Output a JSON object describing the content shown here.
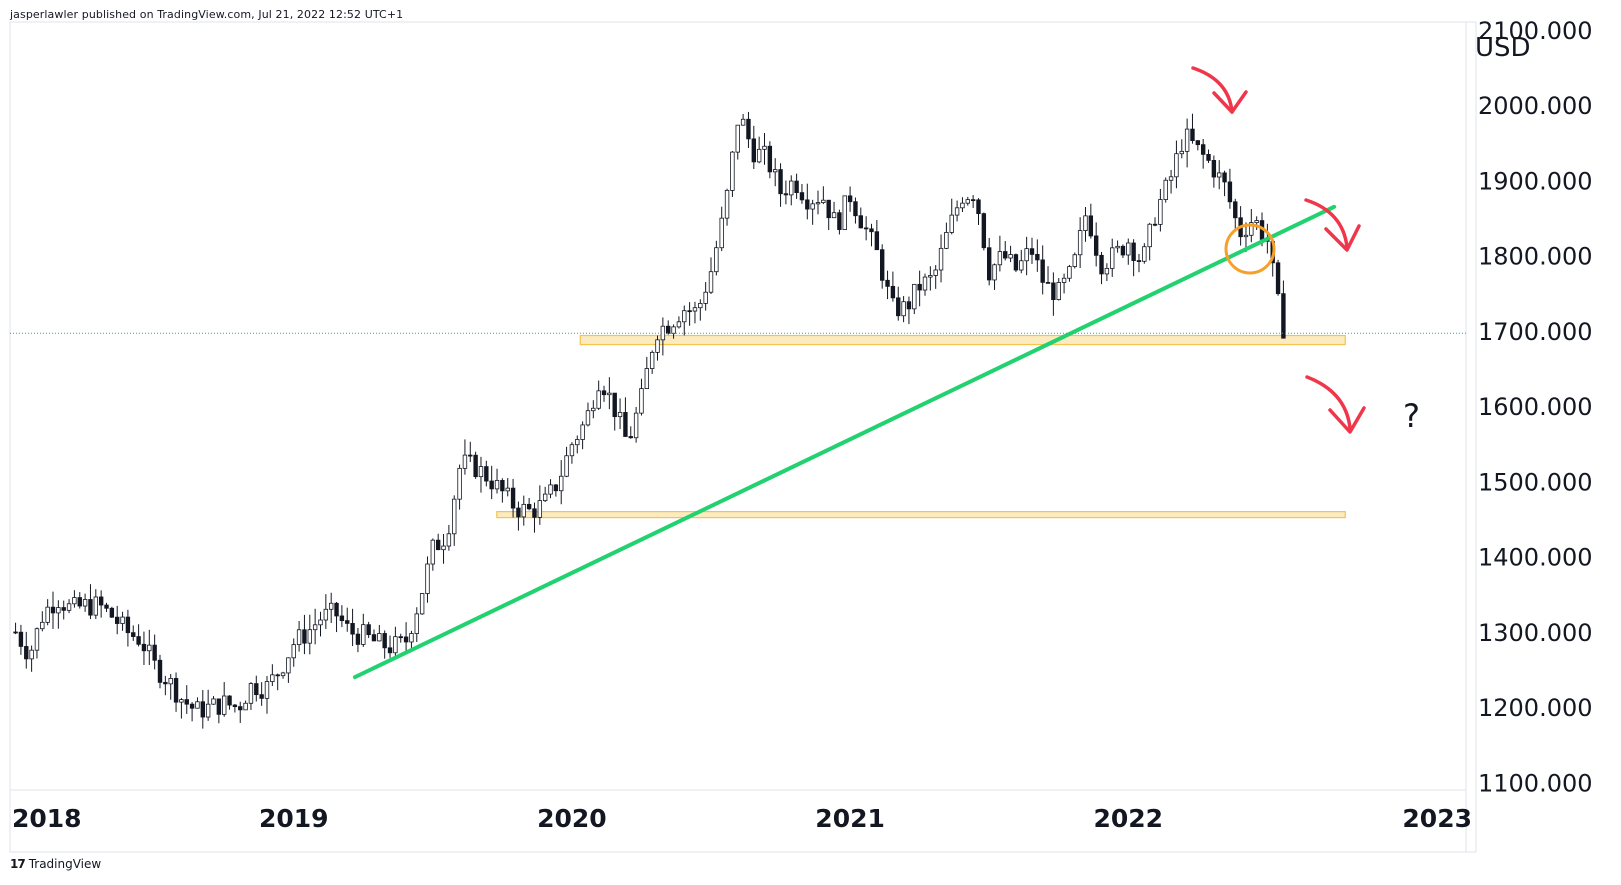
{
  "header": {
    "text": "jasperlawler published on TradingView.com, Jul 21, 2022 12:52 UTC+1"
  },
  "footer": {
    "logo": "17",
    "text": "TradingView"
  },
  "colors": {
    "trendline": "#22d16f",
    "zone": "#f5c44a",
    "arrow": "#f0364a",
    "circle": "#f5a02a",
    "candle": "#131722",
    "current": "#26a69a"
  },
  "chart_data": {
    "type": "candlestick",
    "currency": "USD",
    "ylim": [
      1090,
      2100
    ],
    "y_ticks": [
      "2100.000",
      "2000.000",
      "1900.000",
      "1800.000",
      "1700.000",
      "1600.000",
      "1500.000",
      "1400.000",
      "1300.000",
      "1200.000",
      "1100.000"
    ],
    "x_ticks": [
      "2018",
      "2019",
      "2020",
      "2021",
      "2022",
      "2023"
    ],
    "current_price": 1697,
    "support_zones": [
      {
        "from": 1682,
        "to": 1694,
        "start": 2020.03,
        "end": 2022.78
      },
      {
        "from": 1452,
        "to": 1460,
        "start": 2019.73,
        "end": 2022.78
      }
    ],
    "trendline": {
      "points": [
        [
          2019.22,
          1240
        ],
        [
          2022.74,
          1865
        ]
      ]
    },
    "annotation": "?",
    "closes": [
      [
        2018.0,
        1300
      ],
      [
        2018.05,
        1270
      ],
      [
        2018.1,
        1325
      ],
      [
        2018.15,
        1345
      ],
      [
        2018.2,
        1330
      ],
      [
        2018.25,
        1335
      ],
      [
        2018.3,
        1335
      ],
      [
        2018.35,
        1320
      ],
      [
        2018.4,
        1300
      ],
      [
        2018.45,
        1290
      ],
      [
        2018.5,
        1255
      ],
      [
        2018.55,
        1235
      ],
      [
        2018.6,
        1210
      ],
      [
        2018.65,
        1195
      ],
      [
        2018.7,
        1200
      ],
      [
        2018.75,
        1205
      ],
      [
        2018.8,
        1200
      ],
      [
        2018.85,
        1230
      ],
      [
        2018.9,
        1225
      ],
      [
        2018.95,
        1250
      ],
      [
        2019.0,
        1285
      ],
      [
        2019.05,
        1300
      ],
      [
        2019.1,
        1320
      ],
      [
        2019.15,
        1325
      ],
      [
        2019.2,
        1300
      ],
      [
        2019.25,
        1295
      ],
      [
        2019.3,
        1285
      ],
      [
        2019.35,
        1280
      ],
      [
        2019.4,
        1285
      ],
      [
        2019.45,
        1340
      ],
      [
        2019.5,
        1410
      ],
      [
        2019.55,
        1430
      ],
      [
        2019.6,
        1525
      ],
      [
        2019.65,
        1520
      ],
      [
        2019.7,
        1505
      ],
      [
        2019.75,
        1485
      ],
      [
        2019.8,
        1465
      ],
      [
        2019.85,
        1460
      ],
      [
        2019.9,
        1470
      ],
      [
        2019.95,
        1500
      ],
      [
        2020.0,
        1550
      ],
      [
        2020.05,
        1580
      ],
      [
        2020.1,
        1640
      ],
      [
        2020.15,
        1600
      ],
      [
        2020.2,
        1550
      ],
      [
        2020.25,
        1610
      ],
      [
        2020.3,
        1700
      ],
      [
        2020.35,
        1710
      ],
      [
        2020.4,
        1730
      ],
      [
        2020.45,
        1725
      ],
      [
        2020.5,
        1780
      ],
      [
        2020.55,
        1860
      ],
      [
        2020.6,
        1990
      ],
      [
        2020.65,
        1940
      ],
      [
        2020.7,
        1930
      ],
      [
        2020.75,
        1885
      ],
      [
        2020.8,
        1900
      ],
      [
        2020.85,
        1875
      ],
      [
        2020.9,
        1880
      ],
      [
        2020.95,
        1840
      ],
      [
        2021.0,
        1880
      ],
      [
        2021.05,
        1840
      ],
      [
        2021.1,
        1800
      ],
      [
        2021.15,
        1730
      ],
      [
        2021.2,
        1730
      ],
      [
        2021.25,
        1760
      ],
      [
        2021.3,
        1770
      ],
      [
        2021.35,
        1830
      ],
      [
        2021.4,
        1880
      ],
      [
        2021.45,
        1885
      ],
      [
        2021.5,
        1780
      ],
      [
        2021.55,
        1800
      ],
      [
        2021.6,
        1780
      ],
      [
        2021.65,
        1810
      ],
      [
        2021.7,
        1760
      ],
      [
        2021.75,
        1750
      ],
      [
        2021.8,
        1780
      ],
      [
        2021.85,
        1860
      ],
      [
        2021.9,
        1790
      ],
      [
        2021.95,
        1800
      ],
      [
        2022.0,
        1820
      ],
      [
        2022.05,
        1790
      ],
      [
        2022.1,
        1860
      ],
      [
        2022.15,
        1900
      ],
      [
        2022.2,
        1960
      ],
      [
        2022.25,
        1940
      ],
      [
        2022.3,
        1920
      ],
      [
        2022.35,
        1890
      ],
      [
        2022.4,
        1830
      ],
      [
        2022.45,
        1850
      ],
      [
        2022.5,
        1820
      ],
      [
        2022.55,
        1710
      ],
      [
        2022.57,
        1697
      ]
    ]
  }
}
